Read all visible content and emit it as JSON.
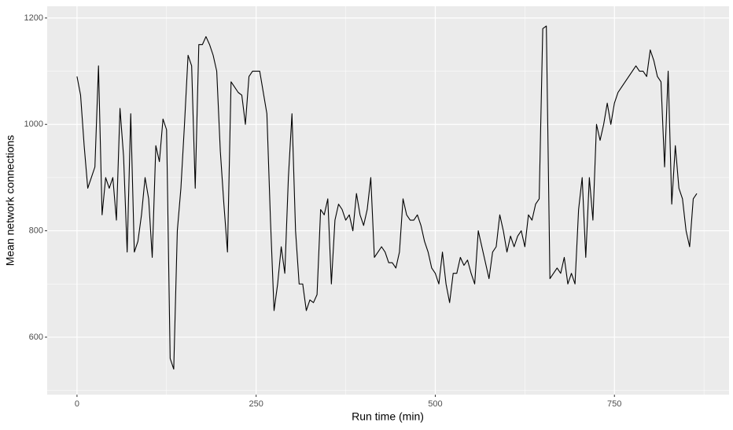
{
  "chart_data": {
    "type": "line",
    "x_label": "Run time (min)",
    "y_label": "Mean network connections",
    "color": "#000000",
    "x": [
      0,
      5,
      10,
      15,
      20,
      25,
      30,
      35,
      40,
      45,
      50,
      55,
      60,
      65,
      70,
      75,
      80,
      85,
      90,
      95,
      100,
      105,
      110,
      115,
      120,
      125,
      130,
      135,
      140,
      145,
      150,
      155,
      160,
      165,
      170,
      175,
      180,
      185,
      190,
      195,
      200,
      205,
      210,
      215,
      220,
      225,
      230,
      235,
      240,
      245,
      250,
      255,
      260,
      265,
      270,
      275,
      280,
      285,
      290,
      295,
      300,
      305,
      310,
      315,
      320,
      325,
      330,
      335,
      340,
      345,
      350,
      355,
      360,
      365,
      370,
      375,
      380,
      385,
      390,
      395,
      400,
      405,
      410,
      415,
      420,
      425,
      430,
      435,
      440,
      445,
      450,
      455,
      460,
      465,
      470,
      475,
      480,
      485,
      490,
      495,
      500,
      505,
      510,
      515,
      520,
      525,
      530,
      535,
      540,
      545,
      550,
      555,
      560,
      565,
      570,
      575,
      580,
      585,
      590,
      595,
      600,
      605,
      610,
      615,
      620,
      625,
      630,
      635,
      640,
      645,
      650,
      655,
      660,
      665,
      670,
      675,
      680,
      685,
      690,
      695,
      700,
      705,
      710,
      715,
      720,
      725,
      730,
      735,
      740,
      745,
      750,
      755,
      760,
      765,
      770,
      775,
      780,
      785,
      790,
      795,
      800,
      805,
      810,
      815,
      820,
      825,
      830,
      835,
      840,
      845,
      850,
      855,
      860,
      865
    ],
    "values": [
      1090,
      1055,
      960,
      880,
      900,
      920,
      1110,
      830,
      900,
      880,
      900,
      820,
      1030,
      940,
      760,
      1020,
      760,
      780,
      830,
      900,
      860,
      750,
      960,
      930,
      1010,
      990,
      560,
      540,
      800,
      880,
      1000,
      1130,
      1110,
      880,
      1150,
      1150,
      1165,
      1150,
      1130,
      1100,
      950,
      850,
      760,
      1080,
      1070,
      1060,
      1055,
      1000,
      1090,
      1100,
      1100,
      1100,
      1060,
      1020,
      820,
      650,
      700,
      770,
      720,
      900,
      1020,
      800,
      700,
      700,
      650,
      670,
      665,
      680,
      840,
      830,
      860,
      700,
      820,
      850,
      840,
      820,
      830,
      800,
      870,
      830,
      810,
      840,
      900,
      750,
      760,
      770,
      760,
      740,
      740,
      730,
      760,
      860,
      830,
      820,
      820,
      830,
      810,
      780,
      760,
      730,
      720,
      700,
      760,
      700,
      665,
      720,
      720,
      750,
      735,
      745,
      720,
      700,
      800,
      770,
      740,
      710,
      760,
      770,
      830,
      800,
      760,
      790,
      770,
      790,
      800,
      770,
      830,
      820,
      850,
      860,
      1180,
      1185,
      710,
      720,
      730,
      720,
      750,
      700,
      720,
      700,
      840,
      900,
      750,
      900,
      820,
      1000,
      970,
      1000,
      1040,
      1000,
      1040,
      1060,
      1070,
      1080,
      1090,
      1100,
      1110,
      1100,
      1100,
      1090,
      1140,
      1120,
      1090,
      1080,
      920,
      1100,
      850,
      960,
      880,
      860,
      800,
      770,
      860,
      870
    ],
    "xlim": [
      -41.6,
      910
    ],
    "ylim": [
      492,
      1222
    ],
    "xticks": [
      0,
      250,
      500,
      750
    ],
    "yticks": [
      600,
      800,
      1000,
      1200
    ],
    "xminor": [
      125,
      375,
      625,
      875
    ],
    "yminor": [
      500,
      700,
      900,
      1100
    ],
    "grid": true
  }
}
